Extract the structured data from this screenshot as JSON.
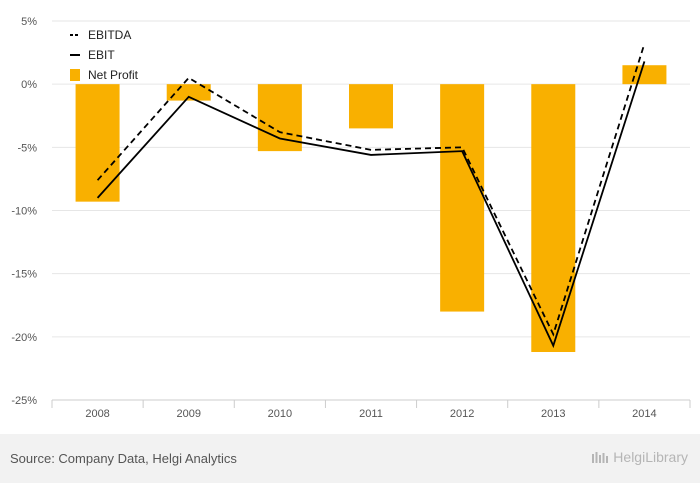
{
  "chart_data": {
    "type": "bar+line",
    "categories": [
      "2008",
      "2009",
      "2010",
      "2011",
      "2012",
      "2013",
      "2014"
    ],
    "series": [
      {
        "name": "EBITDA",
        "kind": "line",
        "style": "dashed",
        "color": "#000000",
        "values": [
          -7.6,
          0.5,
          -3.8,
          -5.2,
          -5.0,
          -19.8,
          3.2
        ]
      },
      {
        "name": "EBIT",
        "kind": "line",
        "style": "solid",
        "color": "#000000",
        "values": [
          -9.0,
          -1.0,
          -4.3,
          -5.6,
          -5.3,
          -20.7,
          1.8
        ]
      },
      {
        "name": "Net Profit",
        "kind": "bar",
        "color": "#f9b000",
        "values": [
          -9.3,
          -1.3,
          -5.3,
          -3.5,
          -18.0,
          -21.2,
          1.5
        ]
      }
    ],
    "yticks": [
      5,
      0,
      -5,
      -10,
      -15,
      -20,
      -25
    ],
    "ylim": [
      -25,
      5
    ],
    "ytick_suffix": "%",
    "grid": true,
    "legend": "top-left"
  },
  "footer": {
    "source": "Source: Company Data, Helgi Analytics",
    "brand": "HelgiLibrary"
  },
  "colors": {
    "bar": "#f9b000",
    "grid": "#e6e6e6",
    "axis": "#cccccc",
    "footer_bg": "#f2f2f2"
  }
}
